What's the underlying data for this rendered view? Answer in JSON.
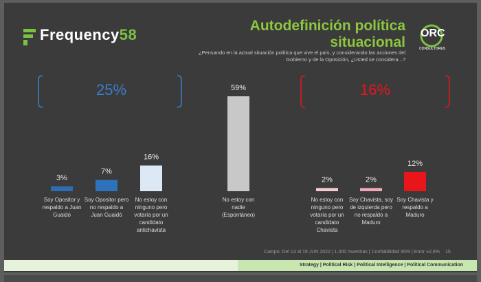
{
  "logo": {
    "name": "Frequency",
    "number": "58"
  },
  "brand": {
    "name": "ORC",
    "tagline": "CONSULTORES"
  },
  "chart_data": {
    "type": "bar",
    "title": "Autodefinición política situacional",
    "subtitle": "¿Pensando en la actual situación política que vive el país, y considerando las acciones del Gobierno y de la Oposición, ¿Usted se considera...?",
    "categories": [
      "Soy Opositor y respaldo a Juan Guaidó",
      "Soy Opositor pero no respaldo a Juan Guaidó",
      "No estoy con ninguno pero votaría por un candidato antichavista",
      "No estoy con nadie (Espontáneo)",
      "No estoy con ninguno pero votaría por un candidato Chavista",
      "Soy Chavista, soy de izquierda pero no respaldo a Maduro",
      "Soy Chavista y respaldo a Maduro"
    ],
    "values": [
      3,
      7,
      16,
      59,
      2,
      2,
      12
    ],
    "value_labels": [
      "3%",
      "7%",
      "16%",
      "59%",
      "2%",
      "2%",
      "12%"
    ],
    "colors": [
      "#2f6db3",
      "#2e72bb",
      "#dde8f5",
      "#c8c8c8",
      "#f5cbd3",
      "#f0a9b8",
      "#e8161b"
    ],
    "annotations": [
      {
        "label": "25%",
        "color": "#3a7fd0"
      },
      {
        "label": "16%",
        "color": "#e8161b"
      }
    ],
    "note": "Campo: Del 13 al 19 JUN 2022 | 1.000 muestras | Confiabilidad 95% | Error ±2,6%",
    "page": "15"
  },
  "footer": "Strategy | Political Risk | Political Intelligence | Political Communication"
}
